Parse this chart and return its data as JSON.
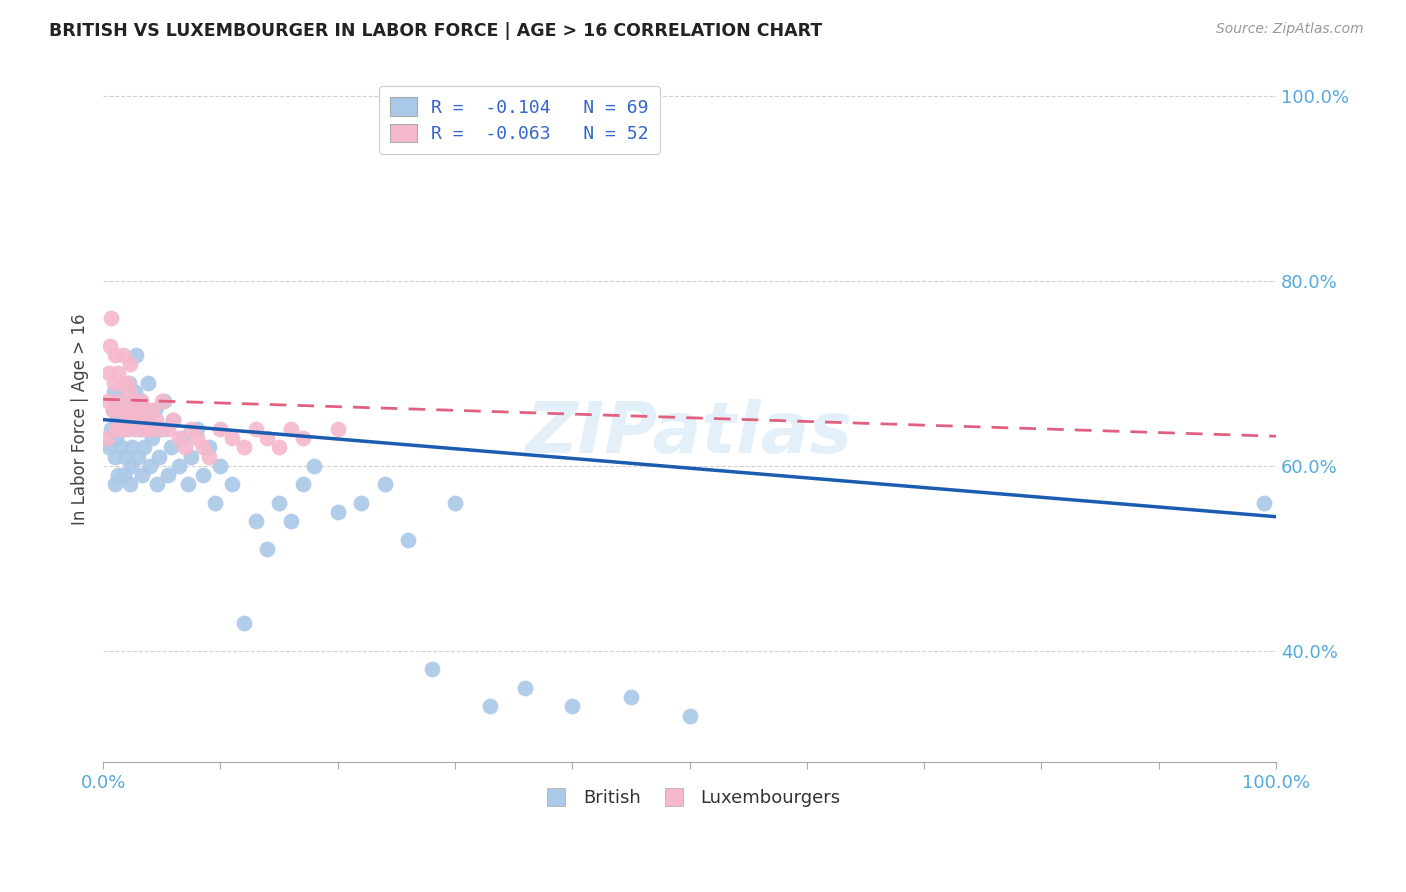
{
  "title": "BRITISH VS LUXEMBOURGER IN LABOR FORCE | AGE > 16 CORRELATION CHART",
  "source": "Source: ZipAtlas.com",
  "ylabel": "In Labor Force | Age > 16",
  "legend_british": "R =  -0.104   N = 69",
  "legend_luxembourger": "R =  -0.063   N = 52",
  "british_color": "#aac8e8",
  "luxembourger_color": "#f5b8cc",
  "british_line_color": "#1a5cb0",
  "luxembourger_line_color": "#e06080",
  "background_color": "#ffffff",
  "grid_color": "#cccccc",
  "watermark": "ZIPatlas",
  "title_color": "#222222",
  "source_color": "#999999",
  "tick_color": "#55aadd",
  "label_color": "#444444",
  "legend_text_color": "#3366cc",
  "bottom_legend_color": "#333333",
  "british_x": [
    0.005,
    0.007,
    0.008,
    0.009,
    0.01,
    0.01,
    0.011,
    0.012,
    0.013,
    0.015,
    0.016,
    0.017,
    0.018,
    0.019,
    0.02,
    0.021,
    0.022,
    0.023,
    0.024,
    0.025,
    0.026,
    0.027,
    0.028,
    0.03,
    0.031,
    0.032,
    0.033,
    0.035,
    0.036,
    0.038,
    0.04,
    0.042,
    0.044,
    0.046,
    0.048,
    0.05,
    0.052,
    0.055,
    0.058,
    0.06,
    0.065,
    0.068,
    0.072,
    0.075,
    0.08,
    0.085,
    0.09,
    0.095,
    0.1,
    0.11,
    0.12,
    0.13,
    0.14,
    0.15,
    0.16,
    0.17,
    0.18,
    0.2,
    0.22,
    0.24,
    0.26,
    0.28,
    0.3,
    0.33,
    0.36,
    0.4,
    0.45,
    0.5,
    0.99
  ],
  "british_y": [
    0.62,
    0.64,
    0.66,
    0.68,
    0.58,
    0.61,
    0.63,
    0.65,
    0.59,
    0.62,
    0.65,
    0.67,
    0.59,
    0.61,
    0.64,
    0.66,
    0.69,
    0.58,
    0.6,
    0.62,
    0.65,
    0.68,
    0.72,
    0.61,
    0.64,
    0.67,
    0.59,
    0.62,
    0.65,
    0.69,
    0.6,
    0.63,
    0.66,
    0.58,
    0.61,
    0.64,
    0.67,
    0.59,
    0.62,
    0.65,
    0.6,
    0.63,
    0.58,
    0.61,
    0.64,
    0.59,
    0.62,
    0.56,
    0.6,
    0.58,
    0.43,
    0.54,
    0.51,
    0.56,
    0.54,
    0.58,
    0.6,
    0.55,
    0.56,
    0.58,
    0.52,
    0.38,
    0.56,
    0.34,
    0.36,
    0.34,
    0.35,
    0.33,
    0.56
  ],
  "luxembourger_x": [
    0.003,
    0.004,
    0.005,
    0.006,
    0.007,
    0.008,
    0.009,
    0.01,
    0.011,
    0.012,
    0.013,
    0.014,
    0.015,
    0.016,
    0.017,
    0.018,
    0.019,
    0.02,
    0.021,
    0.022,
    0.023,
    0.024,
    0.025,
    0.026,
    0.028,
    0.03,
    0.032,
    0.034,
    0.036,
    0.038,
    0.04,
    0.042,
    0.045,
    0.048,
    0.05,
    0.055,
    0.06,
    0.065,
    0.07,
    0.075,
    0.08,
    0.085,
    0.09,
    0.1,
    0.11,
    0.12,
    0.13,
    0.14,
    0.15,
    0.16,
    0.17,
    0.2
  ],
  "luxembourger_y": [
    0.63,
    0.67,
    0.7,
    0.73,
    0.76,
    0.66,
    0.69,
    0.72,
    0.64,
    0.67,
    0.7,
    0.64,
    0.66,
    0.69,
    0.72,
    0.64,
    0.66,
    0.69,
    0.65,
    0.68,
    0.71,
    0.65,
    0.67,
    0.64,
    0.66,
    0.65,
    0.67,
    0.64,
    0.66,
    0.65,
    0.64,
    0.66,
    0.65,
    0.64,
    0.67,
    0.64,
    0.65,
    0.63,
    0.62,
    0.64,
    0.63,
    0.62,
    0.61,
    0.64,
    0.63,
    0.62,
    0.64,
    0.63,
    0.62,
    0.64,
    0.63,
    0.64
  ],
  "british_line_x0": 0.0,
  "british_line_y0": 0.65,
  "british_line_x1": 1.0,
  "british_line_y1": 0.545,
  "luxembourger_line_x0": 0.0,
  "luxembourger_line_y0": 0.672,
  "luxembourger_line_x1": 1.0,
  "luxembourger_line_y1": 0.632,
  "xlim": [
    0.0,
    1.0
  ],
  "ylim": [
    0.28,
    1.02
  ],
  "yticks": [
    0.4,
    0.6,
    0.8,
    1.0
  ],
  "xticks": [
    0.0,
    0.1,
    0.2,
    0.3,
    0.4,
    0.5,
    0.6,
    0.7,
    0.8,
    0.9,
    1.0
  ]
}
